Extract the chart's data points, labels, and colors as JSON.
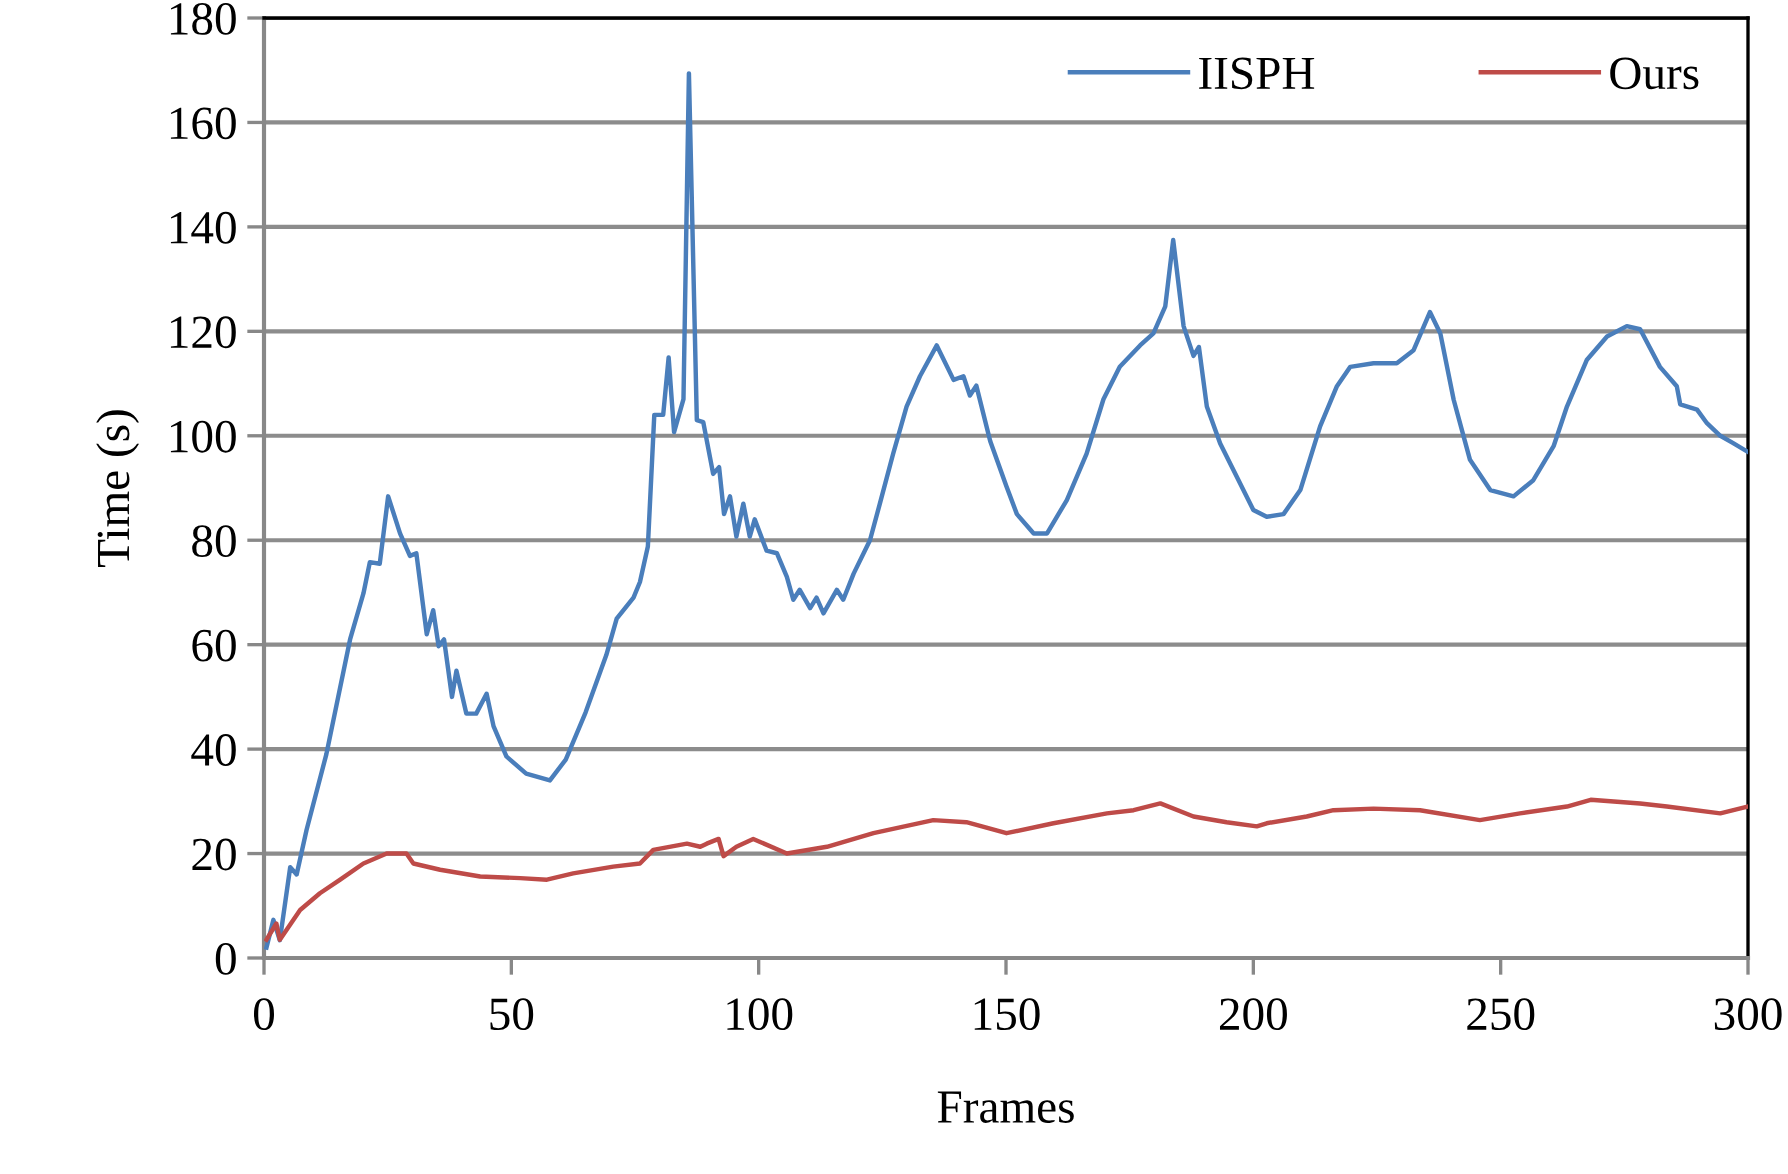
{
  "chart_data": {
    "type": "line",
    "xlabel": "Frames",
    "ylabel": "Time (s)",
    "xlim": [
      0,
      300
    ],
    "xticks": [
      0,
      50,
      100,
      150,
      200,
      250,
      300
    ],
    "ylim": [
      0,
      180
    ],
    "yticks": [
      0,
      20,
      40,
      60,
      80,
      100,
      120,
      140,
      160,
      180
    ],
    "grid": "y",
    "legend": "top right",
    "marker": "none",
    "line_style": "solid",
    "series": [
      {
        "name": "IISPH",
        "color": "#4a7ebb",
        "x": [
          0.5,
          1.9,
          3.2,
          5.3,
          6.6,
          8.6,
          12.6,
          17.4,
          20.1,
          21.4,
          23.4,
          25.1,
          27.5,
          29.5,
          30.8,
          32.9,
          34.2,
          35.3,
          36.4,
          38,
          38.9,
          40.9,
          42.9,
          45,
          46.4,
          49,
          53,
          57.8,
          61,
          65,
          69.2,
          71.3,
          74.7,
          76,
          77.6,
          78.9,
          80.7,
          81.8,
          82.9,
          84.8,
          85.9,
          87.5,
          88.8,
          90.8,
          92,
          93,
          94.2,
          95.5,
          96.9,
          98.2,
          99.2,
          101.6,
          103.7,
          105.7,
          107,
          108.3,
          110.4,
          111.7,
          113.1,
          115.8,
          117.1,
          119.2,
          122.5,
          124.5,
          127.2,
          129.9,
          132.6,
          136,
          139.4,
          141.4,
          142.7,
          144,
          146.8,
          150.1,
          152.2,
          155.6,
          158.3,
          162.3,
          166.3,
          169.7,
          173,
          177.1,
          179.8,
          182.2,
          183.8,
          185.9,
          187.9,
          189,
          190.6,
          193.3,
          196,
          200,
          202.7,
          206.1,
          209.5,
          213.5,
          216.9,
          219.6,
          224.3,
          229,
          232.4,
          235.7,
          237.8,
          240.5,
          243.8,
          247.9,
          252.6,
          256.6,
          260.7,
          263.4,
          267.4,
          271.5,
          275.5,
          278.2,
          282.2,
          285.6,
          286.3,
          289.7,
          291.7,
          294.4,
          297,
          300
        ],
        "values": [
          2,
          7.3,
          3.4,
          17.4,
          16,
          24.5,
          39,
          61,
          69.8,
          75.8,
          75.5,
          88.4,
          81.3,
          77,
          77.5,
          62,
          66.6,
          59.7,
          61,
          50,
          55,
          46.8,
          46.8,
          50.6,
          44.4,
          38.6,
          35.3,
          34,
          38,
          47,
          58,
          65,
          69,
          72,
          78.8,
          104,
          104,
          115,
          100.7,
          107,
          169.4,
          103,
          102.6,
          92.7,
          94,
          85,
          88.4,
          80.7,
          87,
          80.7,
          84,
          78,
          77.5,
          73,
          68.6,
          70.5,
          67,
          69,
          66,
          70.5,
          68.6,
          73.6,
          80,
          87,
          96.6,
          105.6,
          111.4,
          117.3,
          110.7,
          111.4,
          107.7,
          109.6,
          99,
          90.3,
          85,
          81.3,
          81.3,
          87.7,
          96.6,
          107,
          113.2,
          117.3,
          119.6,
          124.8,
          137.5,
          121,
          115.3,
          117,
          105.6,
          98.5,
          93.4,
          85.8,
          84.5,
          85,
          89.6,
          101.8,
          109.5,
          113.2,
          113.9,
          113.9,
          116.4,
          123.7,
          119.6,
          106.9,
          95.4,
          89.6,
          88.4,
          91.5,
          98,
          105.6,
          114.5,
          119,
          121,
          120.4,
          113.2,
          109.5,
          106,
          105,
          102.4,
          100,
          98.6,
          96.9
        ]
      },
      {
        "name": "Ours",
        "color": "#be4b48",
        "x": [
          0.5,
          2.5,
          3.2,
          7.3,
          11.3,
          15.4,
          20.1,
          24.8,
          28.8,
          30.2,
          35.6,
          43.7,
          51.8,
          57.2,
          62.5,
          70.6,
          76,
          78.7,
          85.5,
          88.2,
          89.5,
          91.9,
          92.9,
          95.5,
          98.9,
          105.7,
          113.8,
          123.2,
          135.3,
          142,
          150.1,
          159.6,
          170.4,
          175.8,
          181.2,
          187.9,
          194.6,
          200.7,
          202.7,
          210.8,
          216.2,
          224.3,
          233.7,
          245.8,
          253.9,
          263.4,
          268.2,
          278.2,
          283.6,
          294.4,
          300
        ],
        "values": [
          3.5,
          6.6,
          3.5,
          9.2,
          12.4,
          15,
          18.1,
          20,
          20,
          18.1,
          16.9,
          15.6,
          15.3,
          15,
          16.2,
          17.5,
          18.1,
          20.7,
          21.9,
          21.3,
          21.9,
          22.8,
          19.5,
          21.3,
          22.8,
          20,
          21.3,
          23.9,
          26.4,
          26,
          23.9,
          25.8,
          27.7,
          28.3,
          29.6,
          27.1,
          26,
          25.2,
          25.8,
          27.1,
          28.3,
          28.6,
          28.3,
          26.4,
          27.7,
          29,
          30.3,
          29.6,
          29,
          27.7,
          29
        ]
      }
    ]
  }
}
